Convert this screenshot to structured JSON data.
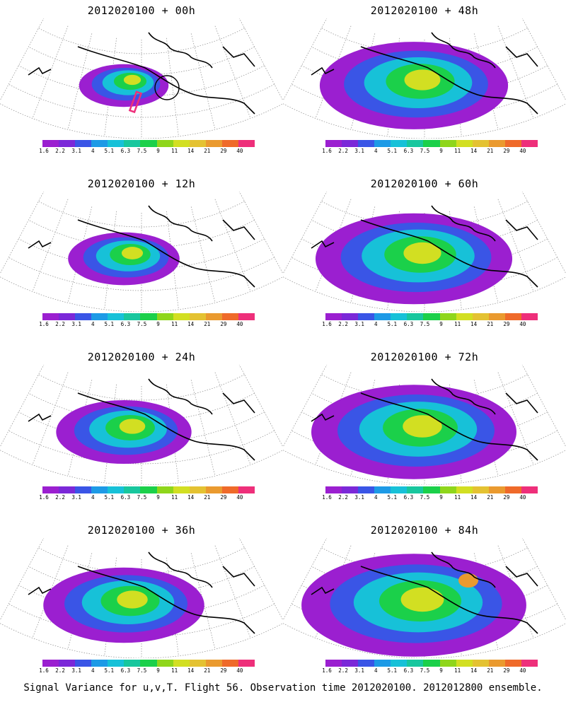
{
  "caption": "Signal Variance for u,v,T. Flight 56. Observation time 2012020100. 2012012800 ensemble.",
  "colorbar": {
    "colors": [
      "#9b1fd0",
      "#7b28d8",
      "#3a55e6",
      "#1d9ae6",
      "#17c1d8",
      "#18c79e",
      "#1bd04a",
      "#8fd61b",
      "#d2df22",
      "#e4c232",
      "#ea9a2f",
      "#ef6a2a",
      "#ee2f7a"
    ],
    "labels": [
      "1.6",
      "2.2",
      "3.1",
      "4",
      "5.1",
      "6.3",
      "7.5",
      "9",
      "11",
      "14",
      "21",
      "29",
      "40"
    ]
  },
  "panels": [
    {
      "title": "2012020100 + 00h",
      "lead_hours": 0,
      "coverage": "small",
      "has_flight_track": true
    },
    {
      "title": "2012020100 + 48h",
      "lead_hours": 48,
      "coverage": "large",
      "has_flight_track": false
    },
    {
      "title": "2012020100 + 12h",
      "lead_hours": 12,
      "coverage": "small-medium",
      "has_flight_track": false
    },
    {
      "title": "2012020100 + 60h",
      "lead_hours": 60,
      "coverage": "large",
      "has_flight_track": false
    },
    {
      "title": "2012020100 + 24h",
      "lead_hours": 24,
      "coverage": "medium",
      "has_flight_track": false
    },
    {
      "title": "2012020100 + 72h",
      "lead_hours": 72,
      "coverage": "large",
      "has_flight_track": false
    },
    {
      "title": "2012020100 + 36h",
      "lead_hours": 36,
      "coverage": "medium-large",
      "has_flight_track": false
    },
    {
      "title": "2012020100 + 84h",
      "lead_hours": 84,
      "coverage": "largest",
      "has_flight_track": false
    }
  ]
}
